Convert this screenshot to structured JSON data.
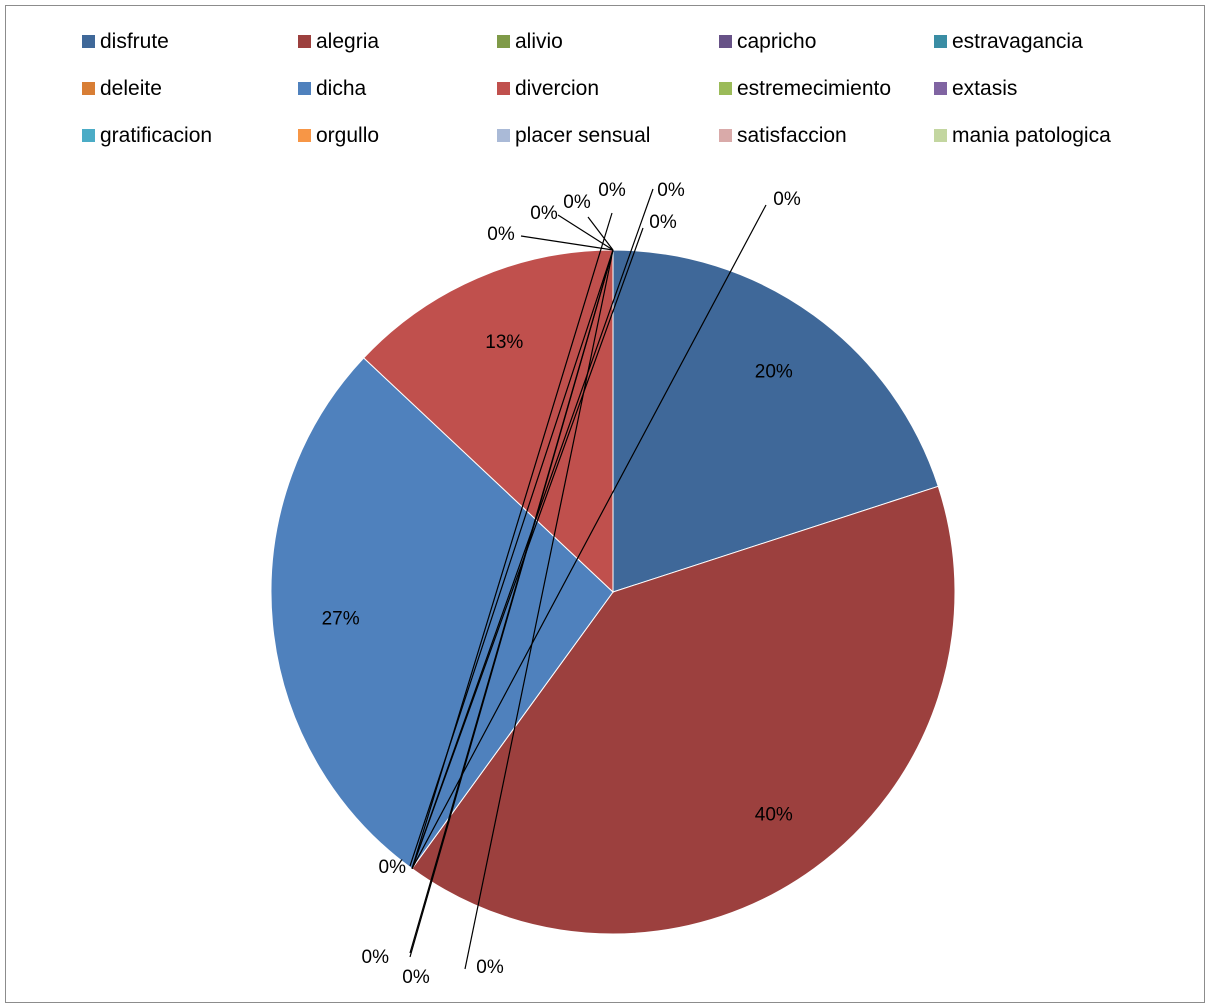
{
  "chart_data": {
    "type": "pie",
    "legend_position": "top",
    "series": [
      {
        "name": "disfrute",
        "value": 20,
        "label": "20%",
        "color": "#3f6899"
      },
      {
        "name": "alegria",
        "value": 40,
        "label": "40%",
        "color": "#9c403e"
      },
      {
        "name": "alivio",
        "value": 0,
        "label": "0%",
        "color": "#7f9a48"
      },
      {
        "name": "capricho",
        "value": 0,
        "label": "0%",
        "color": "#675287"
      },
      {
        "name": "estravagancia",
        "value": 0,
        "label": "0%",
        "color": "#3a8da4"
      },
      {
        "name": "deleite",
        "value": 0,
        "label": "0%",
        "color": "#d87e35"
      },
      {
        "name": "dicha",
        "value": 27,
        "label": "27%",
        "color": "#4f81bd"
      },
      {
        "name": "divercion",
        "value": 13,
        "label": "13%",
        "color": "#c0504d"
      },
      {
        "name": "estremecimiento",
        "value": 0,
        "label": "0%",
        "color": "#9bbb59"
      },
      {
        "name": "extasis",
        "value": 0,
        "label": "0%",
        "color": "#8064a2"
      },
      {
        "name": "gratificacion",
        "value": 0,
        "label": "0%",
        "color": "#4bacc6"
      },
      {
        "name": "orgullo",
        "value": 0,
        "label": "0%",
        "color": "#f79646"
      },
      {
        "name": "placer sensual",
        "value": 0,
        "label": "0%",
        "color": "#aabad7"
      },
      {
        "name": "satisfaccion",
        "value": 0,
        "label": "0%",
        "color": "#d9aaa9"
      },
      {
        "name": "mania patologica",
        "value": 0,
        "label": "0%",
        "color": "#c3d6a0"
      }
    ]
  }
}
